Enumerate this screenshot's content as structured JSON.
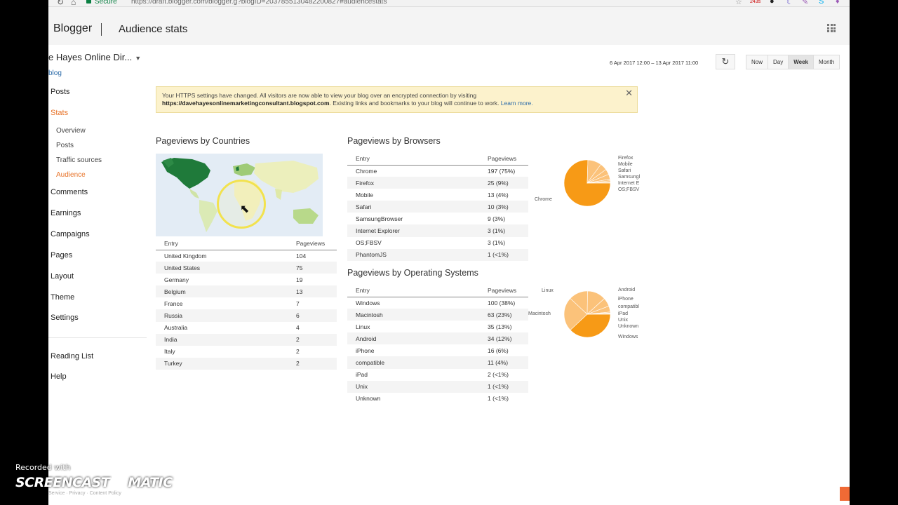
{
  "browser": {
    "secure_label": "Secure",
    "url": "https://draft.blogger.com/blogger.g?blogID=2037855130482200827#audiencestats",
    "ext_badge": "243s"
  },
  "header": {
    "app_name": "Blogger",
    "page_title": "Audience stats"
  },
  "sidebar": {
    "blog_name": "e Hayes Online Dir...",
    "blog_link": "blog",
    "items": [
      {
        "label": "Posts"
      },
      {
        "label": "Stats"
      },
      {
        "label": "Overview"
      },
      {
        "label": "Posts"
      },
      {
        "label": "Traffic sources"
      },
      {
        "label": "Audience"
      },
      {
        "label": "Comments"
      },
      {
        "label": "Earnings"
      },
      {
        "label": "Campaigns"
      },
      {
        "label": "Pages"
      },
      {
        "label": "Layout"
      },
      {
        "label": "Theme"
      },
      {
        "label": "Settings"
      },
      {
        "label": "Reading List"
      },
      {
        "label": "Help"
      }
    ]
  },
  "range": {
    "dates": "6 Apr 2017 12:00 – 13 Apr 2017 11:00",
    "buttons": [
      "Now",
      "Day",
      "Week",
      "Month"
    ],
    "selected": "Week"
  },
  "notice": {
    "text1": "Your HTTPS settings have changed. All visitors are now able to view your blog over an encrypted connection by visiting",
    "url": "https://davehayesonlinemarketingconsultant.blogspot.com",
    "text2": ". Existing links and bookmarks to your blog will continue to work.",
    "learn": "Learn more."
  },
  "countries": {
    "title": "Pageviews by Countries",
    "headers": [
      "Entry",
      "Pageviews"
    ],
    "rows": [
      [
        "United Kingdom",
        "104"
      ],
      [
        "United States",
        "75"
      ],
      [
        "Germany",
        "19"
      ],
      [
        "Belgium",
        "13"
      ],
      [
        "France",
        "7"
      ],
      [
        "Russia",
        "6"
      ],
      [
        "Australia",
        "4"
      ],
      [
        "India",
        "2"
      ],
      [
        "Italy",
        "2"
      ],
      [
        "Turkey",
        "2"
      ]
    ]
  },
  "browsers": {
    "title": "Pageviews by Browsers",
    "headers": [
      "Entry",
      "Pageviews"
    ],
    "rows": [
      [
        "Chrome",
        "197 (75%)"
      ],
      [
        "Firefox",
        "25 (9%)"
      ],
      [
        "Mobile",
        "13 (4%)"
      ],
      [
        "Safari",
        "10 (3%)"
      ],
      [
        "SamsungBrowser",
        "9 (3%)"
      ],
      [
        "Internet Explorer",
        "3 (1%)"
      ],
      [
        "OS;FBSV",
        "3 (1%)"
      ],
      [
        "PhantomJS",
        "1 (<1%)"
      ]
    ],
    "pie_labels": [
      "Firefox",
      "Mobile",
      "Safari",
      "Samsungl",
      "Internet E",
      "OS;FBSV",
      "Chrome"
    ],
    "pie_values": [
      197,
      25,
      13,
      10,
      9,
      3,
      3,
      1
    ]
  },
  "os": {
    "title": "Pageviews by Operating Systems",
    "headers": [
      "Entry",
      "Pageviews"
    ],
    "rows": [
      [
        "Windows",
        "100 (38%)"
      ],
      [
        "Macintosh",
        "63 (23%)"
      ],
      [
        "Linux",
        "35 (13%)"
      ],
      [
        "Android",
        "34 (12%)"
      ],
      [
        "iPhone",
        "16 (6%)"
      ],
      [
        "compatible",
        "11 (4%)"
      ],
      [
        "iPad",
        "2 (<1%)"
      ],
      [
        "Unix",
        "1 (<1%)"
      ],
      [
        "Unknown",
        "1 (<1%)"
      ]
    ],
    "pie_labels": [
      "Linux",
      "Macintosh",
      "Android",
      "iPhone",
      "compatibl",
      "iPad",
      "Unix",
      "Unknown",
      "Windows"
    ],
    "pie_values": [
      100,
      63,
      35,
      34,
      16,
      11,
      2,
      1,
      1
    ]
  },
  "colors": {
    "accent": "#e8742a",
    "pie_main": "#f79a16",
    "pie_light": "#fbc27a",
    "map_highlight": "#1f7a3a"
  },
  "watermark": {
    "recorded": "Recorded with",
    "brand_left": "SCREENCAST",
    "brand_right": "MATIC"
  },
  "footer": {
    "text": "Service · Privacy · Content Policy"
  }
}
